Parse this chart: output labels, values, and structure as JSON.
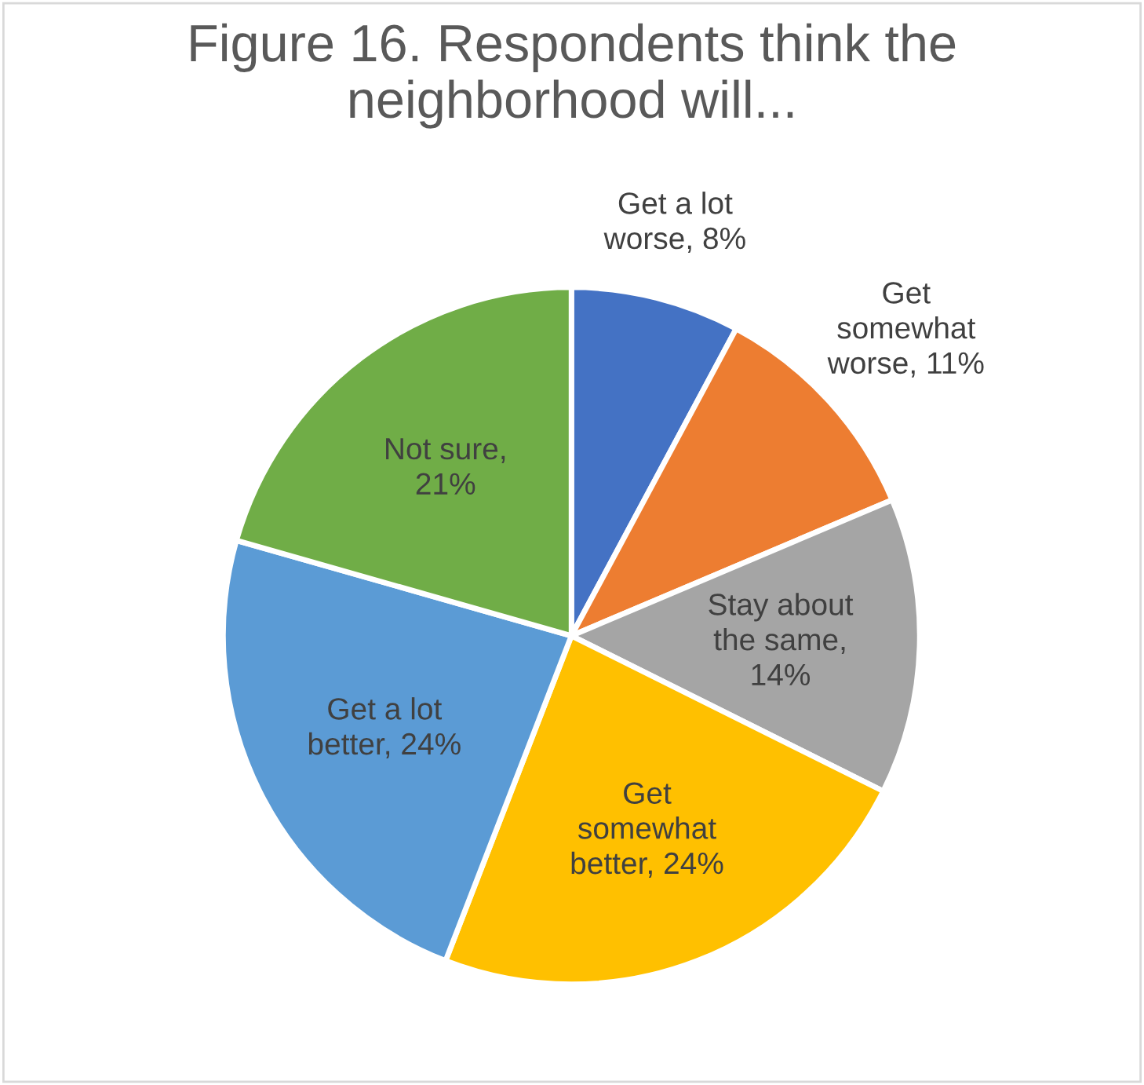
{
  "chart_data": {
    "type": "pie",
    "title": "Figure 16. Respondents think the neighborhood will...",
    "categories": [
      "Get a lot worse, 8%",
      "Get somewhat worse, 11%",
      "Stay about the same, 14%",
      "Get somewhat better, 24%",
      "Get a lot better, 24%",
      "Not sure, 21%"
    ],
    "values": [
      8,
      11,
      14,
      24,
      24,
      21
    ],
    "colors": [
      "#4472c4",
      "#ed7d31",
      "#a5a5a5",
      "#ffc000",
      "#5b9bd5",
      "#70ad47"
    ],
    "legend": false
  }
}
